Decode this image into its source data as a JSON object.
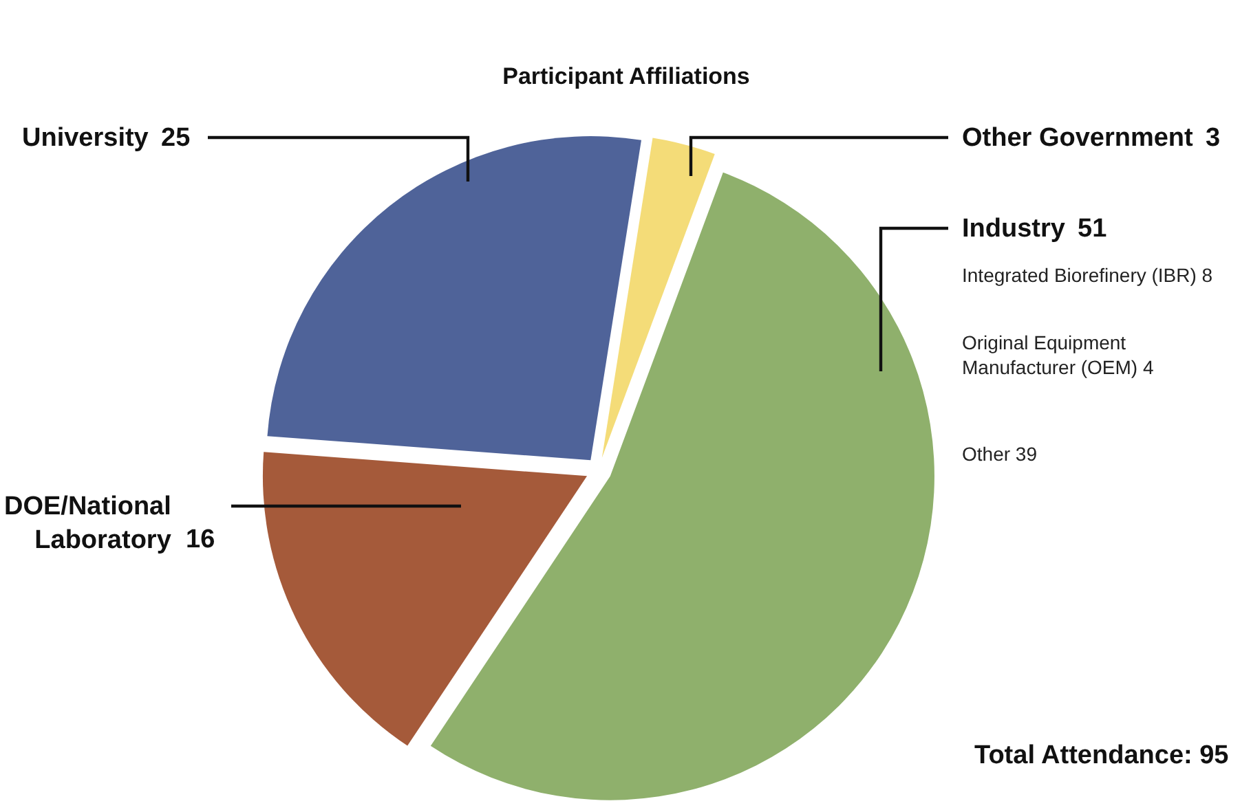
{
  "chart_data": {
    "type": "pie",
    "title": "Participant Affiliations",
    "categories": [
      "Other Government",
      "Industry",
      "DOE/National Laboratory",
      "University"
    ],
    "values": [
      3,
      51,
      16,
      25
    ],
    "colors": [
      "#f4dc78",
      "#8fb06c",
      "#a55a3a",
      "#4f6399"
    ],
    "data_labels": true,
    "annotations": [
      "Integrated Biorefinery (IBR) 8",
      "Original Equipment Manufacturer (OEM) 4",
      "Other 39",
      "Total Attendance: 95"
    ]
  }
}
